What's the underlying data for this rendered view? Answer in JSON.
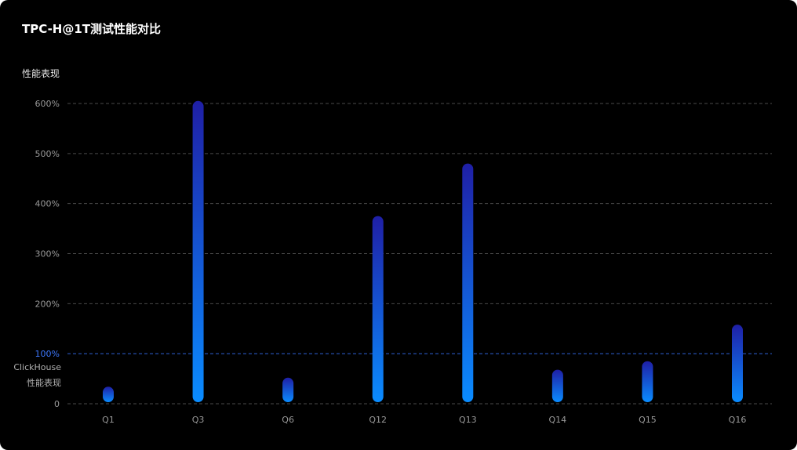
{
  "title": "TPC-H@1T测试性能对比",
  "ylabel": "性能表现",
  "baseline_note": [
    "ClickHouse",
    "性能表现"
  ],
  "colors": {
    "background": "#000000",
    "bar_top": "#1f1fa6",
    "bar_bottom": "#0a8cff",
    "reference_line": "#2f5fd6",
    "grid": "#4a4a4a"
  },
  "chart_data": {
    "type": "bar",
    "categories": [
      "Q1",
      "Q3",
      "Q6",
      "Q12",
      "Q13",
      "Q14",
      "Q15",
      "Q16"
    ],
    "values": [
      34,
      605,
      52,
      375,
      480,
      68,
      85,
      158
    ],
    "yticks": [
      "0",
      "100%",
      "200%",
      "300%",
      "400%",
      "500%",
      "600%"
    ],
    "ytick_values": [
      0,
      100,
      200,
      300,
      400,
      500,
      600
    ],
    "ylim": [
      0,
      600
    ],
    "reference_value": 100,
    "grid": true
  }
}
